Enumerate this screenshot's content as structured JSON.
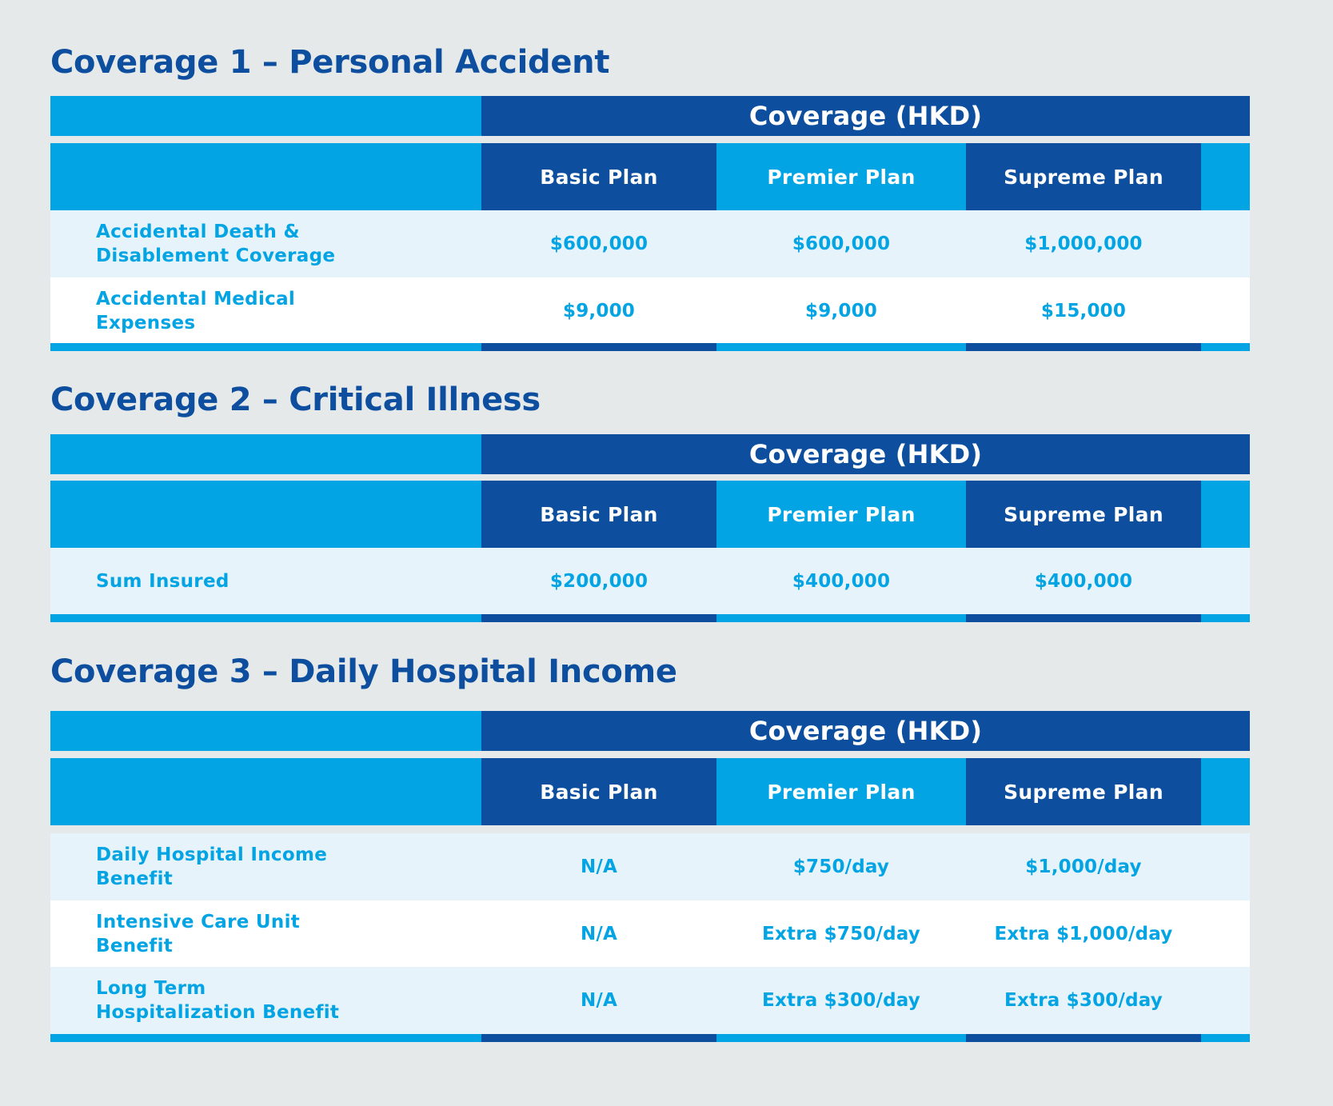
{
  "header_label": "Coverage (HKD)",
  "plans": [
    "Basic Plan",
    "Premier Plan",
    "Supreme Plan"
  ],
  "sections": [
    {
      "title": "Coverage 1 – Personal Accident",
      "rows": [
        {
          "label": "Accidental Death &\nDisablement Coverage",
          "values": [
            "$600,000",
            "$600,000",
            "$1,000,000"
          ]
        },
        {
          "label": "Accidental Medical\nExpenses",
          "values": [
            "$9,000",
            "$9,000",
            "$15,000"
          ]
        }
      ]
    },
    {
      "title": "Coverage 2 – Critical Illness",
      "rows": [
        {
          "label": "Sum Insured",
          "values": [
            "$200,000",
            "$400,000",
            "$400,000"
          ]
        }
      ]
    },
    {
      "title": "Coverage 3 – Daily Hospital Income",
      "rows": [
        {
          "label": "Daily Hospital Income\nBenefit",
          "values": [
            "N/A",
            "$750/day",
            "$1,000/day"
          ]
        },
        {
          "label": "Intensive Care Unit\nBenefit",
          "values": [
            "N/A",
            "Extra $750/day",
            "Extra $1,000/day"
          ]
        },
        {
          "label": "Long Term\nHospitalization Benefit",
          "values": [
            "N/A",
            "Extra $300/day",
            "Extra $300/day"
          ]
        }
      ]
    }
  ]
}
